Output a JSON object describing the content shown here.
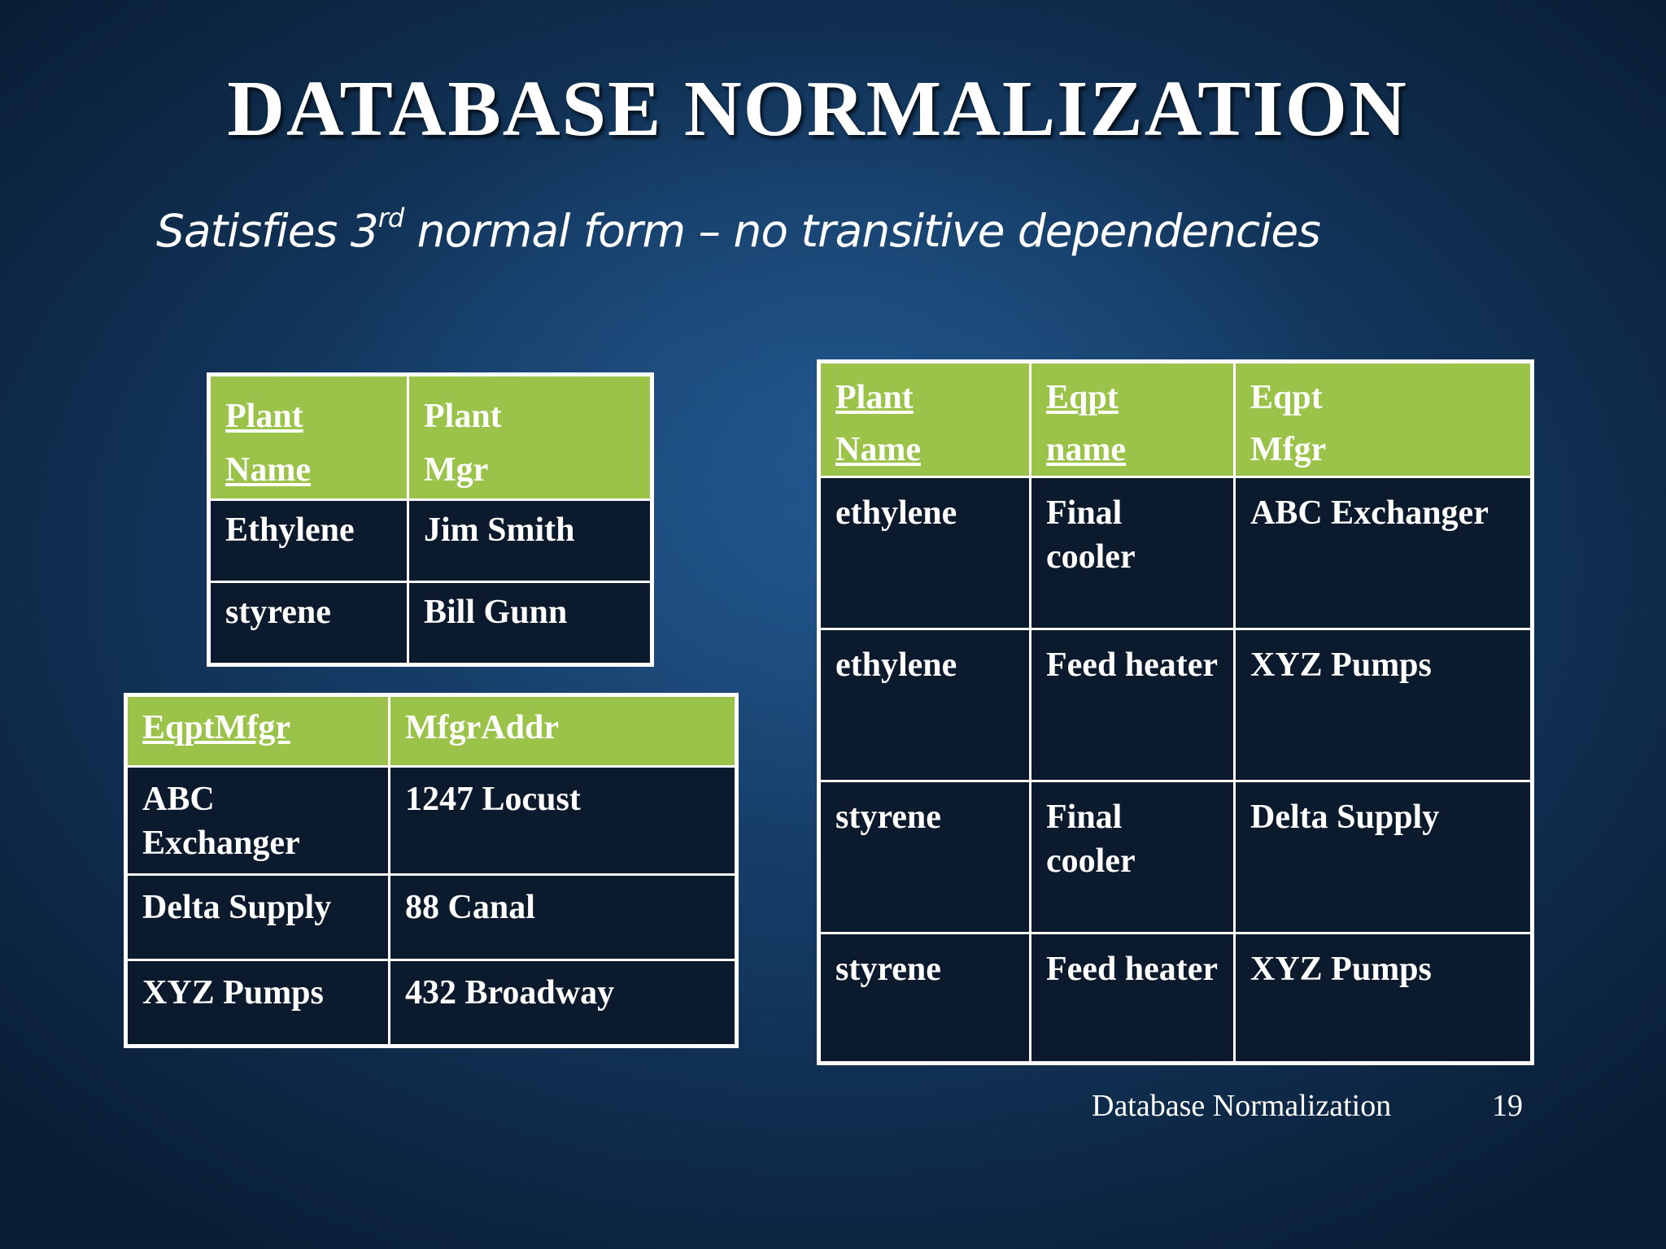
{
  "slide": {
    "title": "DATABASE NORMALIZATION",
    "subtitle_pre": "Satisfies 3",
    "subtitle_sup": "rd",
    "subtitle_post": " normal form – no transitive dependencies",
    "footer": "Database Normalization",
    "page_number": "19"
  },
  "tables": {
    "plant_mgr": {
      "headers": [
        {
          "line1": "Plant",
          "line2": "Name",
          "key": true
        },
        {
          "line1": "Plant",
          "line2": "Mgr",
          "key": false
        }
      ],
      "rows": [
        [
          "Ethylene",
          "Jim Smith"
        ],
        [
          "styrene",
          "Bill Gunn"
        ]
      ]
    },
    "mfgr_addr": {
      "headers": [
        {
          "label": "EqptMfgr",
          "key": true
        },
        {
          "label": "MfgrAddr",
          "key": false
        }
      ],
      "rows": [
        [
          "ABC Exchanger",
          "1247 Locust"
        ],
        [
          "Delta Supply",
          "88 Canal"
        ],
        [
          "XYZ Pumps",
          "432 Broadway"
        ]
      ]
    },
    "plant_eqpt": {
      "headers": [
        {
          "line1": "Plant",
          "line2": "Name",
          "key": true
        },
        {
          "line1": "Eqpt",
          "line2": "name",
          "key": true
        },
        {
          "line1": "Eqpt",
          "line2": "Mfgr",
          "key": false
        }
      ],
      "rows": [
        [
          "ethylene",
          "Final cooler",
          "ABC Exchanger"
        ],
        [
          "ethylene",
          "Feed heater",
          "XYZ Pumps"
        ],
        [
          "styrene",
          "Final cooler",
          "Delta Supply"
        ],
        [
          "styrene",
          "Feed heater",
          "XYZ Pumps"
        ]
      ]
    }
  },
  "colors": {
    "header_fill": "#9bc34a",
    "cell_fill": "#0b1a2c",
    "border": "#ffffff"
  }
}
